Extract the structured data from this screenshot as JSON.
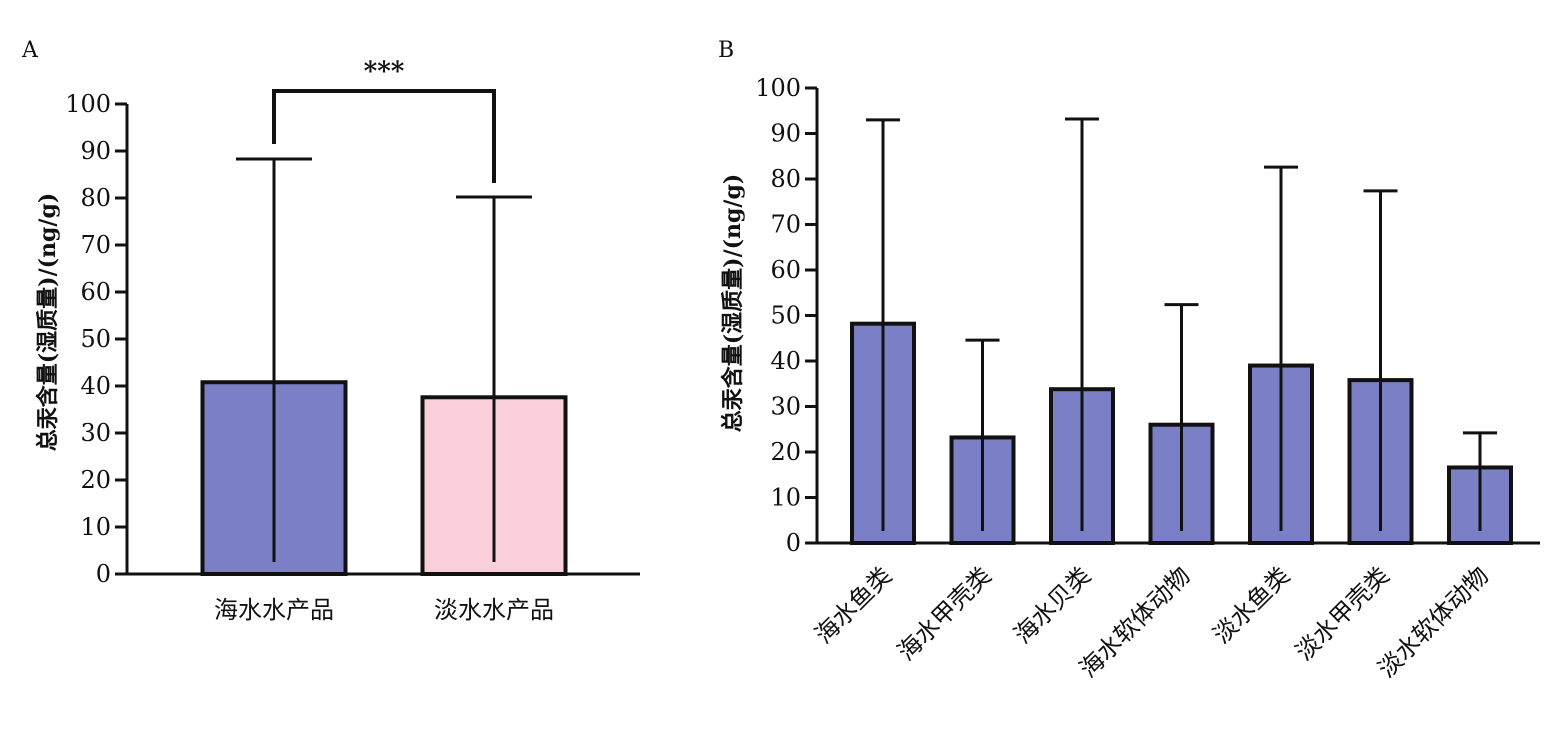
{
  "colors": {
    "blue": "#7b7fc6",
    "pink": "#f9d0da",
    "stroke": "#111111"
  },
  "chart_data": [
    {
      "type": "bar",
      "panel": "A",
      "ylabel": "总汞含量(湿质量)/(ng/g)",
      "ylim": [
        0,
        100
      ],
      "yticks": [
        0,
        10,
        20,
        30,
        40,
        50,
        60,
        70,
        80,
        90,
        100
      ],
      "categories": [
        "海水水产品",
        "淡水水产品"
      ],
      "values": [
        40.8,
        37.6
      ],
      "error_upper": [
        88.3,
        80.2
      ],
      "bar_colors": [
        "#7b7fc6",
        "#f9d0da"
      ],
      "significance": "***",
      "grid": false
    },
    {
      "type": "bar",
      "panel": "B",
      "ylabel": "总汞含量(湿质量)/(ng/g)",
      "ylim": [
        0,
        100
      ],
      "yticks": [
        0,
        10,
        20,
        30,
        40,
        50,
        60,
        70,
        80,
        90,
        100
      ],
      "categories": [
        "海水鱼类",
        "海水甲壳类",
        "海水贝类",
        "海水软体动物",
        "淡水鱼类",
        "淡水甲壳类",
        "淡水软体动物"
      ],
      "values": [
        48.2,
        23.2,
        33.8,
        26.0,
        39.0,
        35.8,
        16.6
      ],
      "error_upper": [
        93.0,
        44.6,
        93.2,
        52.4,
        82.6,
        77.4,
        24.2
      ],
      "bar_colors": [
        "#7b7fc6",
        "#7b7fc6",
        "#7b7fc6",
        "#7b7fc6",
        "#7b7fc6",
        "#7b7fc6",
        "#7b7fc6"
      ],
      "grid": false
    }
  ]
}
